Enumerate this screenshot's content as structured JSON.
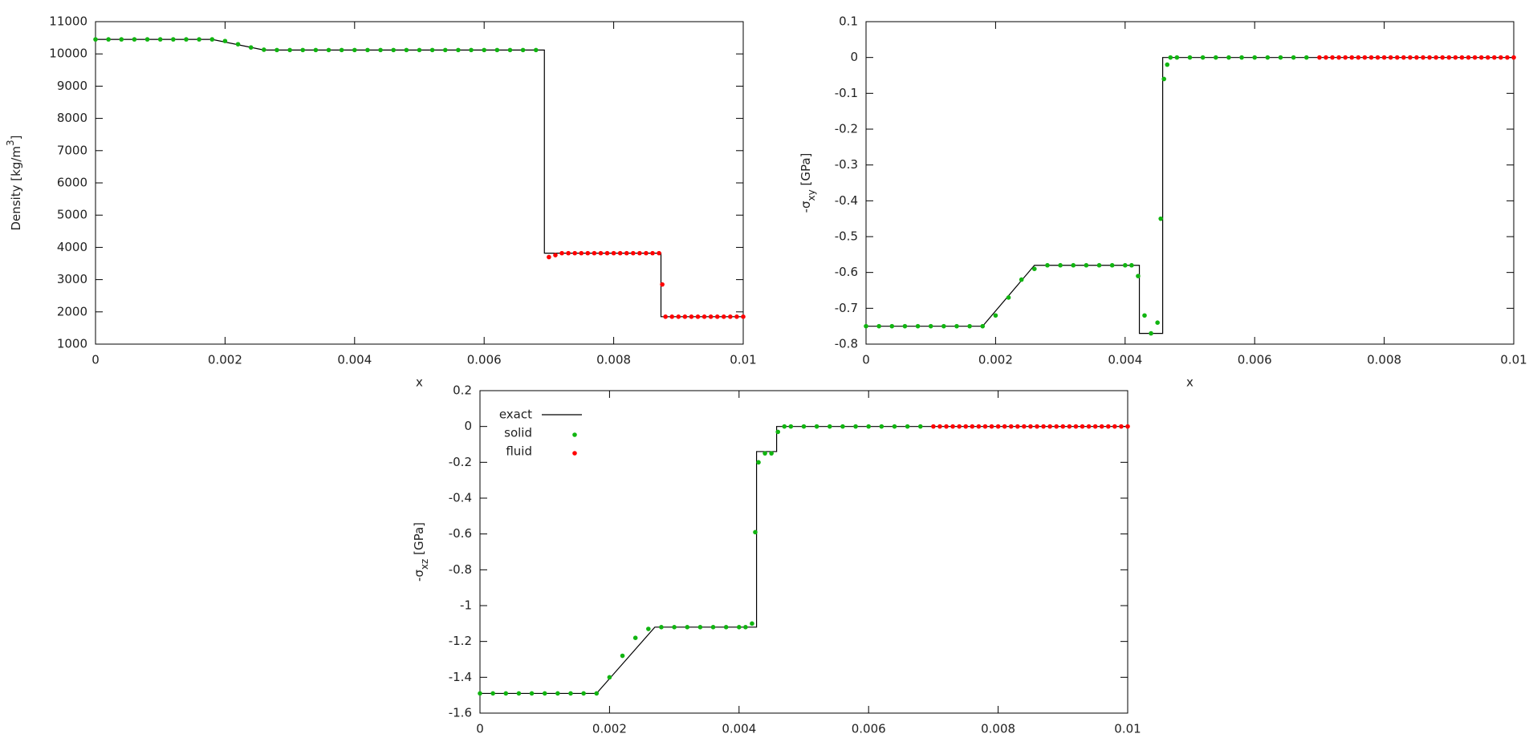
{
  "chart_data": [
    {
      "type": "scatter",
      "x_label": "x",
      "y_label": [
        {
          "text": "Density [kg/m"
        },
        {
          "text": "3",
          "script": "super"
        },
        {
          "text": "]"
        }
      ],
      "xlim": [
        0,
        0.01
      ],
      "xticks": [
        0,
        0.002,
        0.004,
        0.006,
        0.008,
        0.01
      ],
      "ylim": [
        1000,
        11000
      ],
      "yticks": [
        1000,
        2000,
        3000,
        4000,
        5000,
        6000,
        7000,
        8000,
        9000,
        10000,
        11000
      ],
      "series": [
        {
          "type": "line",
          "color": "#000000",
          "x": [
            0,
            0.0018,
            0.0026,
            0.00693,
            0.00693,
            0.00873,
            0.00873,
            0.01
          ],
          "values": [
            10450,
            10450,
            10120,
            10120,
            3820,
            3820,
            1850,
            1850
          ]
        },
        {
          "type": "points",
          "color": "#11b511",
          "x": [
            0,
            0.0002,
            0.0004,
            0.0006,
            0.0008,
            0.001,
            0.0012,
            0.0014,
            0.0016,
            0.0018,
            0.002,
            0.0022,
            0.0024,
            0.0026,
            0.0028,
            0.003,
            0.0032,
            0.0034,
            0.0036,
            0.0038,
            0.004,
            0.0042,
            0.0044,
            0.0046,
            0.0048,
            0.005,
            0.0052,
            0.0054,
            0.0056,
            0.0058,
            0.006,
            0.0062,
            0.0064,
            0.0066,
            0.0068
          ],
          "values": [
            10450,
            10450,
            10450,
            10450,
            10450,
            10450,
            10450,
            10450,
            10450,
            10450,
            10400,
            10300,
            10200,
            10130,
            10120,
            10120,
            10120,
            10120,
            10120,
            10120,
            10120,
            10120,
            10120,
            10120,
            10120,
            10120,
            10120,
            10120,
            10120,
            10120,
            10120,
            10120,
            10120,
            10120,
            10120
          ]
        },
        {
          "type": "points",
          "color": "#ff0000",
          "x": [
            0.007,
            0.0071,
            0.0072,
            0.0073,
            0.0074,
            0.0075,
            0.0076,
            0.0077,
            0.0078,
            0.0079,
            0.008,
            0.0081,
            0.0082,
            0.0083,
            0.0084,
            0.0085,
            0.0086,
            0.0087,
            0.00875,
            0.0088,
            0.0089,
            0.009,
            0.0091,
            0.0092,
            0.0093,
            0.0094,
            0.0095,
            0.0096,
            0.0097,
            0.0098,
            0.0099,
            0.01
          ],
          "values": [
            3700,
            3760,
            3820,
            3820,
            3820,
            3820,
            3820,
            3820,
            3820,
            3820,
            3820,
            3820,
            3820,
            3820,
            3820,
            3820,
            3820,
            3820,
            2850,
            1850,
            1850,
            1850,
            1850,
            1850,
            1850,
            1850,
            1850,
            1850,
            1850,
            1850,
            1850,
            1850
          ]
        }
      ]
    },
    {
      "type": "scatter",
      "x_label": "x",
      "y_label": [
        {
          "text": "-σ"
        },
        {
          "text": "xy",
          "script": "sub"
        },
        {
          "text": " [GPa]"
        }
      ],
      "xlim": [
        0,
        0.01
      ],
      "xticks": [
        0,
        0.002,
        0.004,
        0.006,
        0.008,
        0.01
      ],
      "ylim": [
        -0.8,
        0.1
      ],
      "yticks": [
        -0.8,
        -0.7,
        -0.6,
        -0.5,
        -0.4,
        -0.3,
        -0.2,
        -0.1,
        0,
        0.1
      ],
      "series": [
        {
          "type": "line",
          "color": "#000000",
          "x": [
            0,
            0.0018,
            0.0026,
            0.00422,
            0.00422,
            0.00458,
            0.00458,
            0.01
          ],
          "values": [
            -0.75,
            -0.75,
            -0.58,
            -0.58,
            -0.77,
            -0.77,
            0,
            0
          ]
        },
        {
          "type": "points",
          "color": "#11b511",
          "x": [
            0,
            0.0002,
            0.0004,
            0.0006,
            0.0008,
            0.001,
            0.0012,
            0.0014,
            0.0016,
            0.0018,
            0.002,
            0.0022,
            0.0024,
            0.0026,
            0.0028,
            0.003,
            0.0032,
            0.0034,
            0.0036,
            0.0038,
            0.004,
            0.0041,
            0.0042,
            0.0043,
            0.0044,
            0.0045,
            0.00455,
            0.0046,
            0.00465,
            0.0047,
            0.0048,
            0.005,
            0.0052,
            0.0054,
            0.0056,
            0.0058,
            0.006,
            0.0062,
            0.0064,
            0.0066,
            0.0068
          ],
          "values": [
            -0.75,
            -0.75,
            -0.75,
            -0.75,
            -0.75,
            -0.75,
            -0.75,
            -0.75,
            -0.75,
            -0.75,
            -0.72,
            -0.67,
            -0.62,
            -0.59,
            -0.58,
            -0.58,
            -0.58,
            -0.58,
            -0.58,
            -0.58,
            -0.58,
            -0.58,
            -0.61,
            -0.72,
            -0.77,
            -0.74,
            -0.45,
            -0.06,
            -0.02,
            0,
            0,
            0,
            0,
            0,
            0,
            0,
            0,
            0,
            0,
            0,
            0
          ]
        },
        {
          "type": "points",
          "color": "#ff0000",
          "x": [
            0.007,
            0.0071,
            0.0072,
            0.0073,
            0.0074,
            0.0075,
            0.0076,
            0.0077,
            0.0078,
            0.0079,
            0.008,
            0.0081,
            0.0082,
            0.0083,
            0.0084,
            0.0085,
            0.0086,
            0.0087,
            0.0088,
            0.0089,
            0.009,
            0.0091,
            0.0092,
            0.0093,
            0.0094,
            0.0095,
            0.0096,
            0.0097,
            0.0098,
            0.0099,
            0.01
          ],
          "values": [
            0,
            0,
            0,
            0,
            0,
            0,
            0,
            0,
            0,
            0,
            0,
            0,
            0,
            0,
            0,
            0,
            0,
            0,
            0,
            0,
            0,
            0,
            0,
            0,
            0,
            0,
            0,
            0,
            0,
            0,
            0
          ]
        }
      ]
    },
    {
      "type": "scatter",
      "y_label": [
        {
          "text": "-σ"
        },
        {
          "text": "xz",
          "script": "sub"
        },
        {
          "text": " [GPa]"
        }
      ],
      "legend": "top-left",
      "xlim": [
        0,
        0.01
      ],
      "xticks": [
        0,
        0.002,
        0.004,
        0.006,
        0.008,
        0.01
      ],
      "ylim": [
        -1.6,
        0.2
      ],
      "yticks": [
        -1.6,
        -1.4,
        -1.2,
        -1,
        -0.8,
        -0.6,
        -0.4,
        -0.2,
        0,
        0.2
      ],
      "series": [
        {
          "name": "exact",
          "type": "line",
          "color": "#000000",
          "x": [
            0,
            0.0018,
            0.0027,
            0.00427,
            0.00427,
            0.00458,
            0.00458,
            0.01
          ],
          "values": [
            -1.49,
            -1.49,
            -1.12,
            -1.12,
            -0.14,
            -0.14,
            0,
            0
          ]
        },
        {
          "name": "solid",
          "type": "points",
          "color": "#11b511",
          "x": [
            0,
            0.0002,
            0.0004,
            0.0006,
            0.0008,
            0.001,
            0.0012,
            0.0014,
            0.0016,
            0.0018,
            0.002,
            0.0022,
            0.0024,
            0.0026,
            0.0028,
            0.003,
            0.0032,
            0.0034,
            0.0036,
            0.0038,
            0.004,
            0.0041,
            0.0042,
            0.00425,
            0.0043,
            0.0044,
            0.0045,
            0.0046,
            0.0047,
            0.0048,
            0.005,
            0.0052,
            0.0054,
            0.0056,
            0.0058,
            0.006,
            0.0062,
            0.0064,
            0.0066,
            0.0068
          ],
          "values": [
            -1.49,
            -1.49,
            -1.49,
            -1.49,
            -1.49,
            -1.49,
            -1.49,
            -1.49,
            -1.49,
            -1.49,
            -1.4,
            -1.28,
            -1.18,
            -1.13,
            -1.12,
            -1.12,
            -1.12,
            -1.12,
            -1.12,
            -1.12,
            -1.12,
            -1.12,
            -1.1,
            -0.59,
            -0.2,
            -0.15,
            -0.15,
            -0.03,
            0,
            0,
            0,
            0,
            0,
            0,
            0,
            0,
            0,
            0,
            0,
            0
          ]
        },
        {
          "name": "fluid",
          "type": "points",
          "color": "#ff0000",
          "x": [
            0.007,
            0.0071,
            0.0072,
            0.0073,
            0.0074,
            0.0075,
            0.0076,
            0.0077,
            0.0078,
            0.0079,
            0.008,
            0.0081,
            0.0082,
            0.0083,
            0.0084,
            0.0085,
            0.0086,
            0.0087,
            0.0088,
            0.0089,
            0.009,
            0.0091,
            0.0092,
            0.0093,
            0.0094,
            0.0095,
            0.0096,
            0.0097,
            0.0098,
            0.0099,
            0.01
          ],
          "values": [
            0,
            0,
            0,
            0,
            0,
            0,
            0,
            0,
            0,
            0,
            0,
            0,
            0,
            0,
            0,
            0,
            0,
            0,
            0,
            0,
            0,
            0,
            0,
            0,
            0,
            0,
            0,
            0,
            0,
            0,
            0
          ]
        }
      ]
    }
  ]
}
